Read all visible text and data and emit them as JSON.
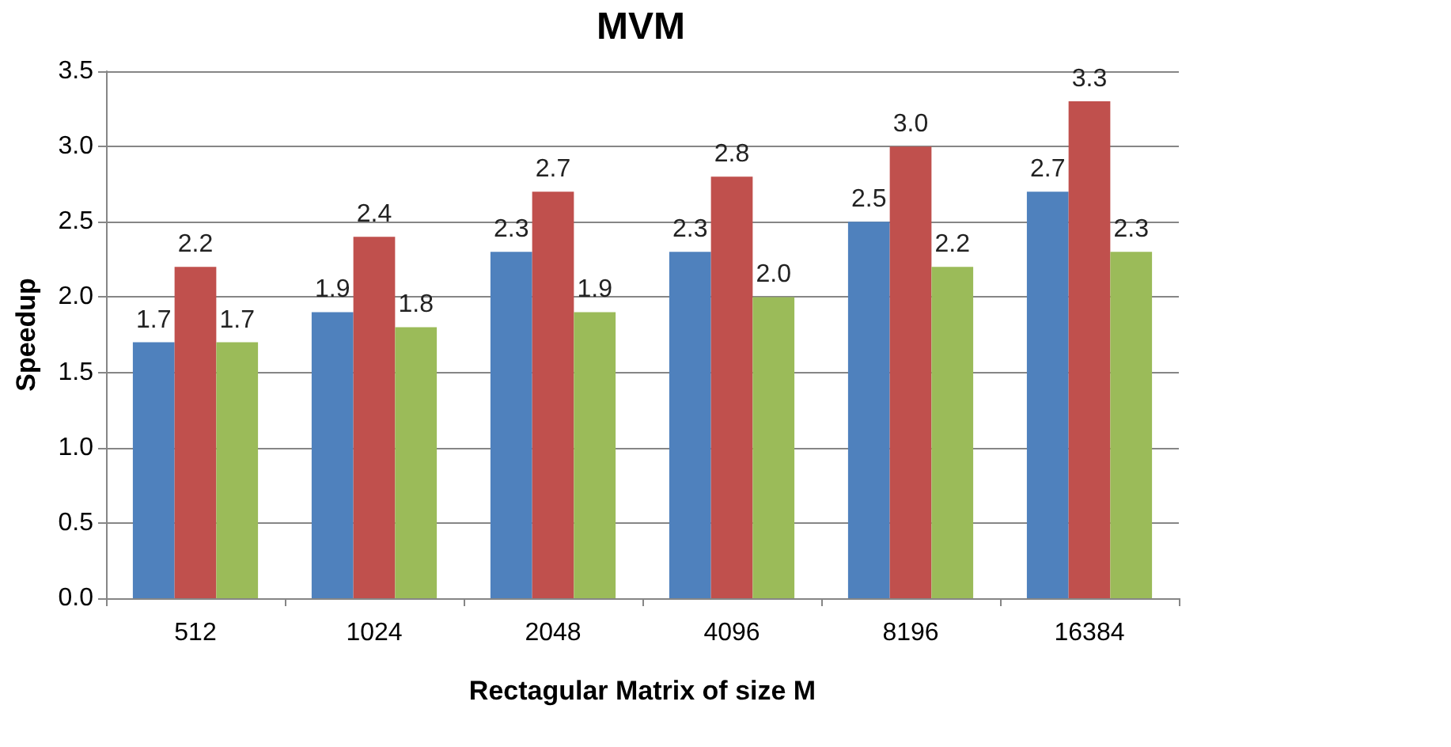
{
  "chart_data": {
    "type": "bar",
    "title": "MVM",
    "xlabel": "Rectagular Matrix of size M",
    "ylabel": "Speedup",
    "categories": [
      "512",
      "1024",
      "2048",
      "4096",
      "8196",
      "16384"
    ],
    "series": [
      {
        "color": "#4f81bd",
        "values": [
          1.7,
          1.9,
          2.3,
          2.3,
          2.5,
          2.7
        ],
        "value_labels": [
          "1.7",
          "1.9",
          "2.3",
          "2.3",
          "2.5",
          "2.7"
        ]
      },
      {
        "color": "#c0504d",
        "values": [
          2.2,
          2.4,
          2.7,
          2.8,
          3.0,
          3.3
        ],
        "value_labels": [
          "2.2",
          "2.4",
          "2.7",
          "2.8",
          "3.0",
          "3.3"
        ]
      },
      {
        "color": "#9bbb59",
        "values": [
          1.7,
          1.8,
          1.9,
          2.0,
          2.2,
          2.3
        ],
        "value_labels": [
          "1.7",
          "1.8",
          "1.9",
          "2.0",
          "2.2",
          "2.3"
        ]
      }
    ],
    "ylim": [
      0,
      3.5
    ],
    "yticks": [
      {
        "value": 0,
        "label": "0.0"
      },
      {
        "value": 0.5,
        "label": "0.5"
      },
      {
        "value": 1,
        "label": "1.0"
      },
      {
        "value": 1.5,
        "label": "1.5"
      },
      {
        "value": 2,
        "label": "2.0"
      },
      {
        "value": 2.5,
        "label": "2.5"
      },
      {
        "value": 3,
        "label": "3.0"
      },
      {
        "value": 3.5,
        "label": "3.5"
      }
    ],
    "grid": "y"
  }
}
